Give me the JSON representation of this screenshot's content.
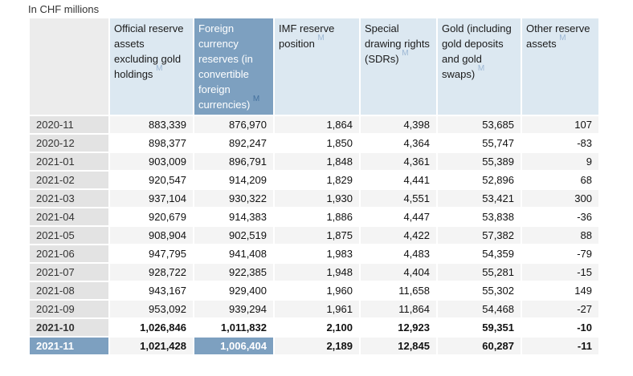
{
  "title": "In CHF millions",
  "colors": {
    "header_bg": "#dce8f1",
    "highlight_bg": "#7da0c0",
    "label_bg": "#e3e3e3",
    "corner_bg": "#ececec",
    "row_alt_bg": "#f4f4f4",
    "metadata_link_light": "#9cb7d4",
    "metadata_link_dark": "#44719e"
  },
  "table": {
    "columns": [
      {
        "name": "official-reserve-assets",
        "label": "Official reserve assets excluding gold holdings",
        "metadata_link": "M",
        "highlighted": false
      },
      {
        "name": "foreign-currency-reserves",
        "label": "Foreign currency reserves (in convertible foreign currencies)",
        "metadata_link": "M",
        "highlighted": true
      },
      {
        "name": "imf-reserve-position",
        "label": "IMF reserve position",
        "metadata_link": "M",
        "highlighted": false
      },
      {
        "name": "special-drawing-rights",
        "label": "Special drawing rights (SDRs)",
        "metadata_link": "M",
        "highlighted": false
      },
      {
        "name": "gold",
        "label": "Gold (including gold deposits and gold swaps)",
        "metadata_link": "M",
        "highlighted": false
      },
      {
        "name": "other-reserve-assets",
        "label": "Other reserve assets",
        "metadata_link": "M",
        "highlighted": false
      }
    ],
    "rows": [
      {
        "period": "2020-11",
        "values": [
          "883,339",
          "876,970",
          "1,864",
          "4,398",
          "53,685",
          "107"
        ],
        "bold": false,
        "selected": false
      },
      {
        "period": "2020-12",
        "values": [
          "898,377",
          "892,247",
          "1,850",
          "4,364",
          "55,747",
          "-83"
        ],
        "bold": false,
        "selected": false
      },
      {
        "period": "2021-01",
        "values": [
          "903,009",
          "896,791",
          "1,848",
          "4,361",
          "55,389",
          "9"
        ],
        "bold": false,
        "selected": false
      },
      {
        "period": "2021-02",
        "values": [
          "920,547",
          "914,209",
          "1,829",
          "4,441",
          "52,896",
          "68"
        ],
        "bold": false,
        "selected": false
      },
      {
        "period": "2021-03",
        "values": [
          "937,104",
          "930,322",
          "1,930",
          "4,551",
          "53,421",
          "300"
        ],
        "bold": false,
        "selected": false
      },
      {
        "period": "2021-04",
        "values": [
          "920,679",
          "914,383",
          "1,886",
          "4,447",
          "53,838",
          "-36"
        ],
        "bold": false,
        "selected": false
      },
      {
        "period": "2021-05",
        "values": [
          "908,904",
          "902,519",
          "1,875",
          "4,422",
          "57,382",
          "88"
        ],
        "bold": false,
        "selected": false
      },
      {
        "period": "2021-06",
        "values": [
          "947,795",
          "941,408",
          "1,983",
          "4,483",
          "54,359",
          "-79"
        ],
        "bold": false,
        "selected": false
      },
      {
        "period": "2021-07",
        "values": [
          "928,722",
          "922,385",
          "1,948",
          "4,404",
          "55,281",
          "-15"
        ],
        "bold": false,
        "selected": false
      },
      {
        "period": "2021-08",
        "values": [
          "943,167",
          "929,400",
          "1,960",
          "11,658",
          "55,302",
          "149"
        ],
        "bold": false,
        "selected": false
      },
      {
        "period": "2021-09",
        "values": [
          "953,092",
          "939,294",
          "1,961",
          "11,864",
          "54,468",
          "-27"
        ],
        "bold": false,
        "selected": false
      },
      {
        "period": "2021-10",
        "values": [
          "1,026,846",
          "1,011,832",
          "2,100",
          "12,923",
          "59,351",
          "-10"
        ],
        "bold": true,
        "selected": false
      },
      {
        "period": "2021-11",
        "values": [
          "1,021,428",
          "1,006,404",
          "2,189",
          "12,845",
          "60,287",
          "-11"
        ],
        "bold": true,
        "selected": true
      }
    ]
  }
}
